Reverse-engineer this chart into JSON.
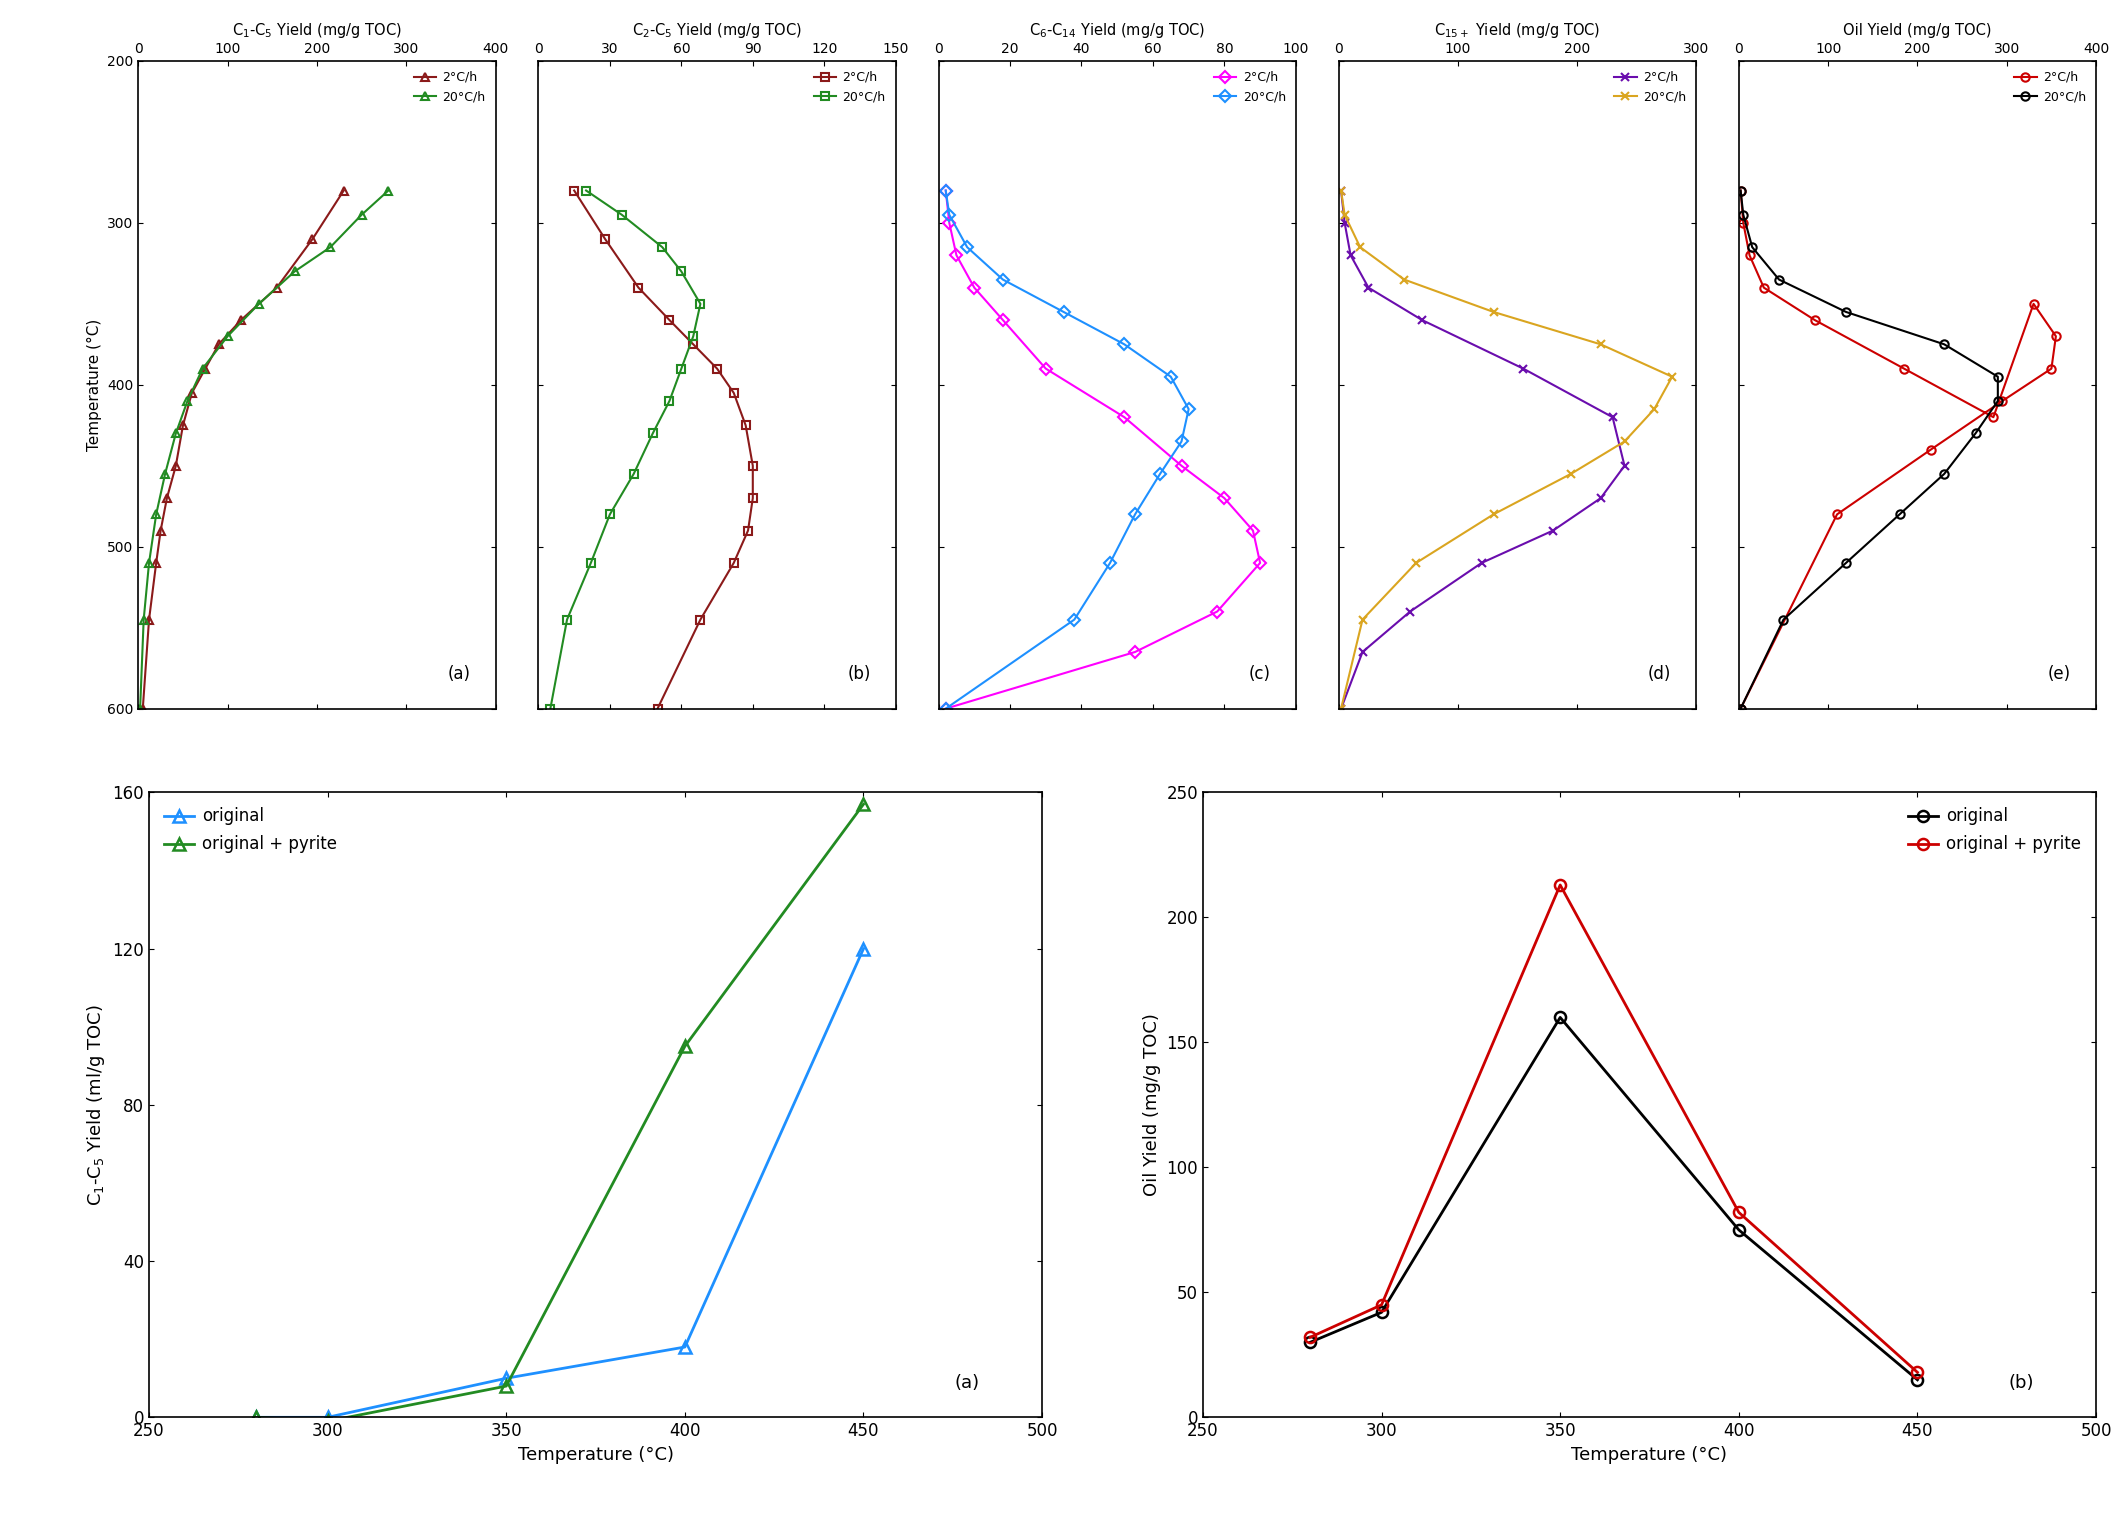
{
  "panel_a": {
    "title": "C$_1$-C$_5$ Yield (mg/g TOC)",
    "xlim": [
      0,
      400
    ],
    "xticks": [
      0,
      100,
      200,
      300,
      400
    ],
    "ylim": [
      600,
      200
    ],
    "yticks": [
      200,
      300,
      400,
      500,
      600
    ],
    "ylabel": "Temperature (°C)",
    "label_text": "(a)",
    "series": [
      {
        "label": "2°C/h",
        "color": "#8B1A1A",
        "marker": "^",
        "x": [
          230,
          195,
          155,
          115,
          90,
          75,
          60,
          50,
          42,
          32,
          25,
          20,
          12,
          5
        ],
        "y": [
          280,
          310,
          340,
          360,
          375,
          390,
          405,
          425,
          450,
          470,
          490,
          510,
          545,
          600
        ]
      },
      {
        "label": "20°C/h",
        "color": "#228B22",
        "marker": "^",
        "x": [
          280,
          250,
          215,
          175,
          135,
          100,
          72,
          55,
          42,
          30,
          20,
          12,
          6,
          2
        ],
        "y": [
          280,
          295,
          315,
          330,
          350,
          370,
          390,
          410,
          430,
          455,
          480,
          510,
          545,
          600
        ]
      }
    ]
  },
  "panel_b": {
    "title": "C$_2$-C$_5$ Yield (mg/g TOC)",
    "xlim": [
      0,
      150
    ],
    "xticks": [
      0,
      30,
      60,
      90,
      120,
      150
    ],
    "ylim": [
      600,
      200
    ],
    "yticks": [
      200,
      300,
      400,
      500,
      600
    ],
    "label_text": "(b)",
    "series": [
      {
        "label": "2°C/h",
        "color": "#8B1A1A",
        "marker": "s",
        "x": [
          15,
          28,
          42,
          55,
          65,
          75,
          82,
          87,
          90,
          90,
          88,
          82,
          68,
          50
        ],
        "y": [
          280,
          310,
          340,
          360,
          375,
          390,
          405,
          425,
          450,
          470,
          490,
          510,
          545,
          600
        ]
      },
      {
        "label": "20°C/h",
        "color": "#228B22",
        "marker": "s",
        "x": [
          20,
          35,
          52,
          60,
          68,
          65,
          60,
          55,
          48,
          40,
          30,
          22,
          12,
          5
        ],
        "y": [
          280,
          295,
          315,
          330,
          350,
          370,
          390,
          410,
          430,
          455,
          480,
          510,
          545,
          600
        ]
      }
    ]
  },
  "panel_c": {
    "title": "C$_6$-C$_{14}$ Yield (mg/g TOC)",
    "xlim": [
      0,
      100
    ],
    "xticks": [
      0,
      20,
      40,
      60,
      80,
      100
    ],
    "ylim": [
      600,
      200
    ],
    "yticks": [
      200,
      300,
      400,
      500,
      600
    ],
    "label_text": "(c)",
    "series": [
      {
        "label": "2°C/h",
        "color": "#FF00FF",
        "marker": "D",
        "x": [
          2,
          3,
          5,
          10,
          18,
          30,
          52,
          68,
          80,
          88,
          90,
          78,
          55,
          2
        ],
        "y": [
          280,
          300,
          320,
          340,
          360,
          390,
          420,
          450,
          470,
          490,
          510,
          540,
          565,
          600
        ]
      },
      {
        "label": "20°C/h",
        "color": "#1E90FF",
        "marker": "D",
        "x": [
          2,
          3,
          8,
          18,
          35,
          52,
          65,
          70,
          68,
          62,
          55,
          48,
          38,
          2
        ],
        "y": [
          280,
          295,
          315,
          335,
          355,
          375,
          395,
          415,
          435,
          455,
          480,
          510,
          545,
          600
        ]
      }
    ]
  },
  "panel_d": {
    "title": "C$_{15+}$ Yield (mg/g TOC)",
    "xlim": [
      0,
      300
    ],
    "xticks": [
      0,
      100,
      200,
      300
    ],
    "ylim": [
      600,
      200
    ],
    "yticks": [
      200,
      300,
      400,
      500,
      600
    ],
    "label_text": "(d)",
    "series": [
      {
        "label": "2°C/h",
        "color": "#6A0DAD",
        "marker": "x",
        "x": [
          2,
          5,
          10,
          25,
          70,
          155,
          230,
          240,
          220,
          180,
          120,
          60,
          20,
          2
        ],
        "y": [
          280,
          300,
          320,
          340,
          360,
          390,
          420,
          450,
          470,
          490,
          510,
          540,
          565,
          600
        ]
      },
      {
        "label": "20°C/h",
        "color": "#DAA520",
        "marker": "x",
        "x": [
          2,
          5,
          18,
          55,
          130,
          220,
          280,
          265,
          240,
          195,
          130,
          65,
          20,
          2
        ],
        "y": [
          280,
          295,
          315,
          335,
          355,
          375,
          395,
          415,
          435,
          455,
          480,
          510,
          545,
          600
        ]
      }
    ]
  },
  "panel_e": {
    "title": "Oil Yield (mg/g TOC)",
    "xlim": [
      0,
      400
    ],
    "xticks": [
      0,
      100,
      200,
      300,
      400
    ],
    "ylim": [
      600,
      200
    ],
    "yticks": [
      200,
      300,
      400,
      500,
      600
    ],
    "label_text": "(e)",
    "series": [
      {
        "label": "2°C/h",
        "color": "#CC0000",
        "marker": "o",
        "x": [
          2,
          5,
          12,
          28,
          85,
          185,
          285,
          330,
          355,
          350,
          295,
          215,
          110,
          2
        ],
        "y": [
          280,
          300,
          320,
          340,
          360,
          390,
          420,
          350,
          370,
          390,
          410,
          440,
          480,
          600
        ]
      },
      {
        "label": "20°C/h",
        "color": "#000000",
        "marker": "o",
        "x": [
          2,
          5,
          15,
          45,
          120,
          230,
          290,
          290,
          265,
          230,
          180,
          120,
          50,
          2
        ],
        "y": [
          280,
          295,
          315,
          335,
          355,
          375,
          395,
          410,
          430,
          455,
          480,
          510,
          545,
          600
        ]
      }
    ]
  },
  "panel_f": {
    "xlabel": "Temperature (°C)",
    "ylabel": "C$_1$-C$_5$ Yield (ml/g TOC)",
    "xlim": [
      250,
      500
    ],
    "xticks": [
      250,
      300,
      350,
      400,
      450,
      500
    ],
    "ylim": [
      0,
      160
    ],
    "yticks": [
      0,
      40,
      80,
      120,
      160
    ],
    "label_text": "(a)",
    "series": [
      {
        "label": "original",
        "color": "#1E90FF",
        "marker": "^",
        "x": [
          280,
          300,
          350,
          400,
          450
        ],
        "y": [
          0,
          0,
          10,
          18,
          120
        ]
      },
      {
        "label": "original + pyrite",
        "color": "#228B22",
        "marker": "^",
        "x": [
          280,
          300,
          350,
          400,
          450
        ],
        "y": [
          0,
          -1,
          8,
          95,
          157
        ]
      }
    ]
  },
  "panel_g": {
    "xlabel": "Temperature (°C)",
    "ylabel": "Oil Yield (mg/g TOC)",
    "xlim": [
      250,
      500
    ],
    "xticks": [
      250,
      300,
      350,
      400,
      450,
      500
    ],
    "ylim": [
      0,
      250
    ],
    "yticks": [
      0,
      50,
      100,
      150,
      200,
      250
    ],
    "label_text": "(b)",
    "series": [
      {
        "label": "original",
        "color": "#000000",
        "marker": "o",
        "x": [
          280,
          300,
          350,
          400,
          450
        ],
        "y": [
          30,
          42,
          160,
          75,
          15
        ]
      },
      {
        "label": "original + pyrite",
        "color": "#CC0000",
        "marker": "o",
        "x": [
          280,
          300,
          350,
          400,
          450
        ],
        "y": [
          32,
          45,
          213,
          82,
          18
        ]
      }
    ]
  }
}
